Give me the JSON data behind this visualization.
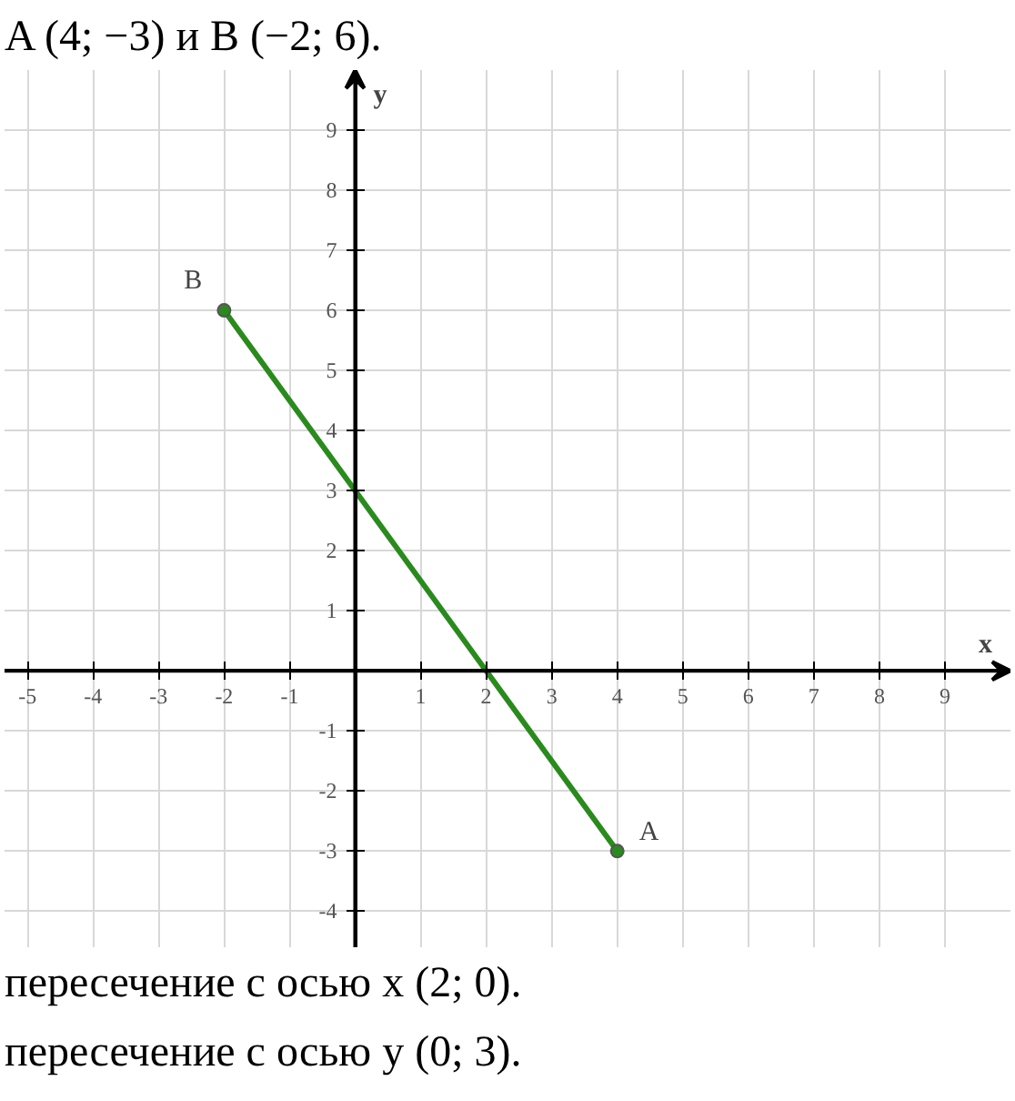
{
  "chart_data": {
    "type": "line",
    "title": "A (4; −3) и B (−2; 6).",
    "xlabel": "x",
    "ylabel": "y",
    "x": [
      -2,
      4
    ],
    "series": [
      {
        "color": "#2a8a1e",
        "values": [
          6,
          -3
        ]
      }
    ],
    "marker": "circle",
    "grid": true,
    "xlim": [
      -5.35,
      10
    ],
    "ylim": [
      -4.6,
      10
    ],
    "xticks": [
      -5,
      -4,
      -3,
      -2,
      -1,
      1,
      2,
      3,
      4,
      5,
      6,
      7,
      8,
      9
    ],
    "yticks": [
      -4,
      -3,
      -2,
      -1,
      1,
      2,
      3,
      4,
      5,
      6,
      7,
      8,
      9
    ],
    "annotations": [
      {
        "text": "B",
        "x": -2,
        "y": 6
      },
      {
        "text": "A",
        "x": 4,
        "y": -3
      },
      "пересечение с осью x  (2; 0).",
      "пересечение с осью y  (0; 3)."
    ]
  }
}
